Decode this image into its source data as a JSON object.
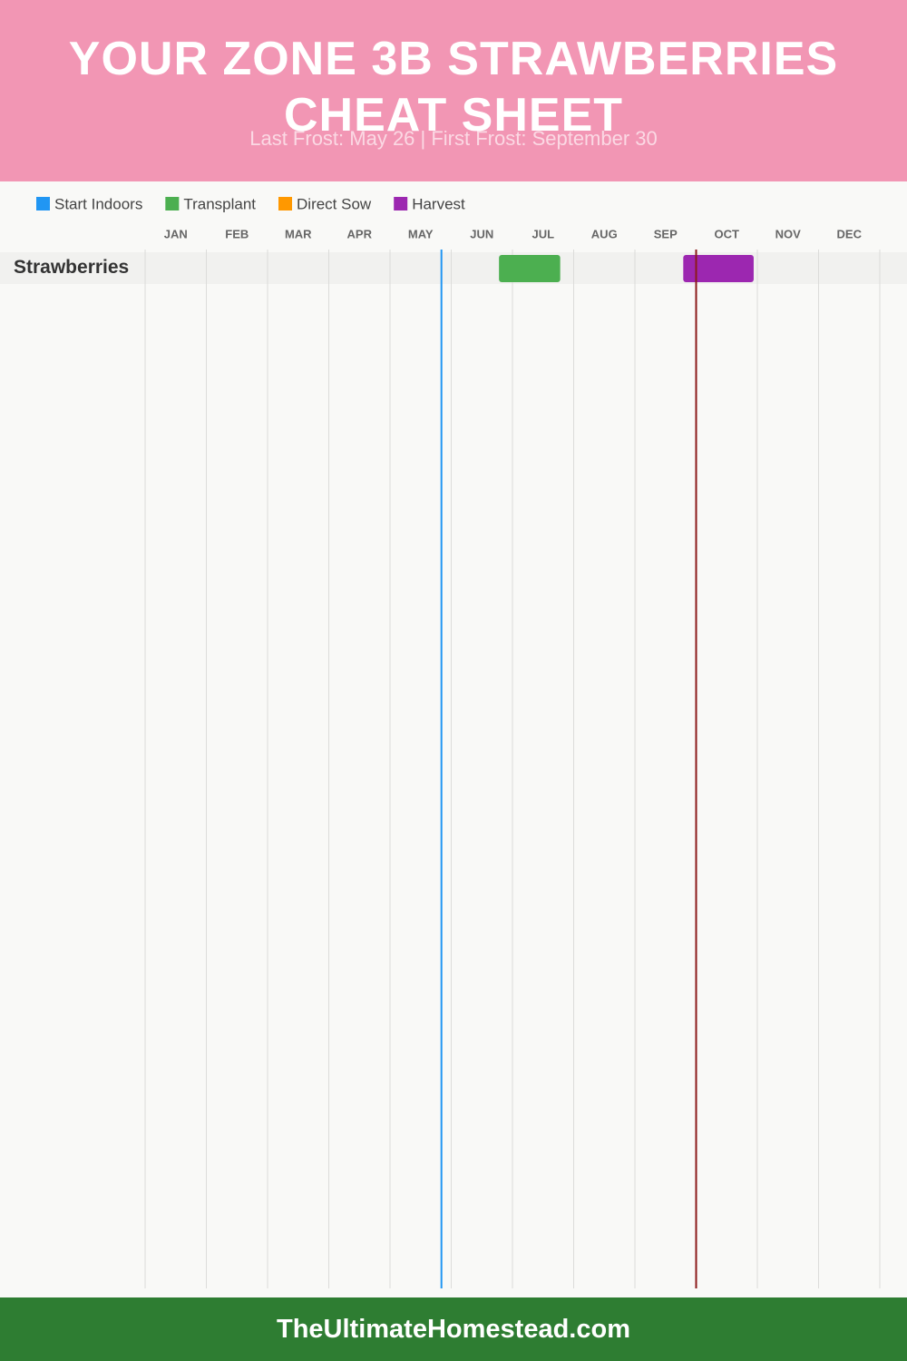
{
  "chart_data": {
    "type": "range-bar",
    "title": "YOUR ZONE 3B STRAWBERRIES CHEAT SHEET",
    "subtitle": "Last Frost: May 26 | First Frost: September 30",
    "footer": "TheUltimateHomestead.com",
    "categories": [
      "Strawberries"
    ],
    "series": [
      {
        "name": "Start Indoors",
        "color": "#2196f3",
        "values": [
          null
        ]
      },
      {
        "name": "Transplant",
        "color": "#4caf50",
        "values": [
          [
            5.78,
            6.78
          ]
        ]
      },
      {
        "name": "Direct Sow",
        "color": "#ff9800",
        "values": [
          null
        ]
      },
      {
        "name": "Harvest",
        "color": "#9c27b0",
        "values": [
          [
            8.79,
            9.94
          ]
        ]
      }
    ],
    "markers": [
      {
        "value": 4.84,
        "color": "#2196f3"
      },
      {
        "value": 9,
        "color": "#8b1a1a"
      }
    ],
    "xlim": [
      0,
      12
    ],
    "xticks": [
      {
        "value": 0,
        "label": "JAN"
      },
      {
        "value": 1,
        "label": "FEB"
      },
      {
        "value": 2,
        "label": "MAR"
      },
      {
        "value": 3,
        "label": "APR"
      },
      {
        "value": 4,
        "label": "MAY"
      },
      {
        "value": 5,
        "label": "JUN"
      },
      {
        "value": 6,
        "label": "JUL"
      },
      {
        "value": 7,
        "label": "AUG"
      },
      {
        "value": 8,
        "label": "SEP"
      },
      {
        "value": 9,
        "label": "OCT"
      },
      {
        "value": 10,
        "label": "NOV"
      },
      {
        "value": 11,
        "label": "DEC"
      }
    ],
    "grid": true
  }
}
